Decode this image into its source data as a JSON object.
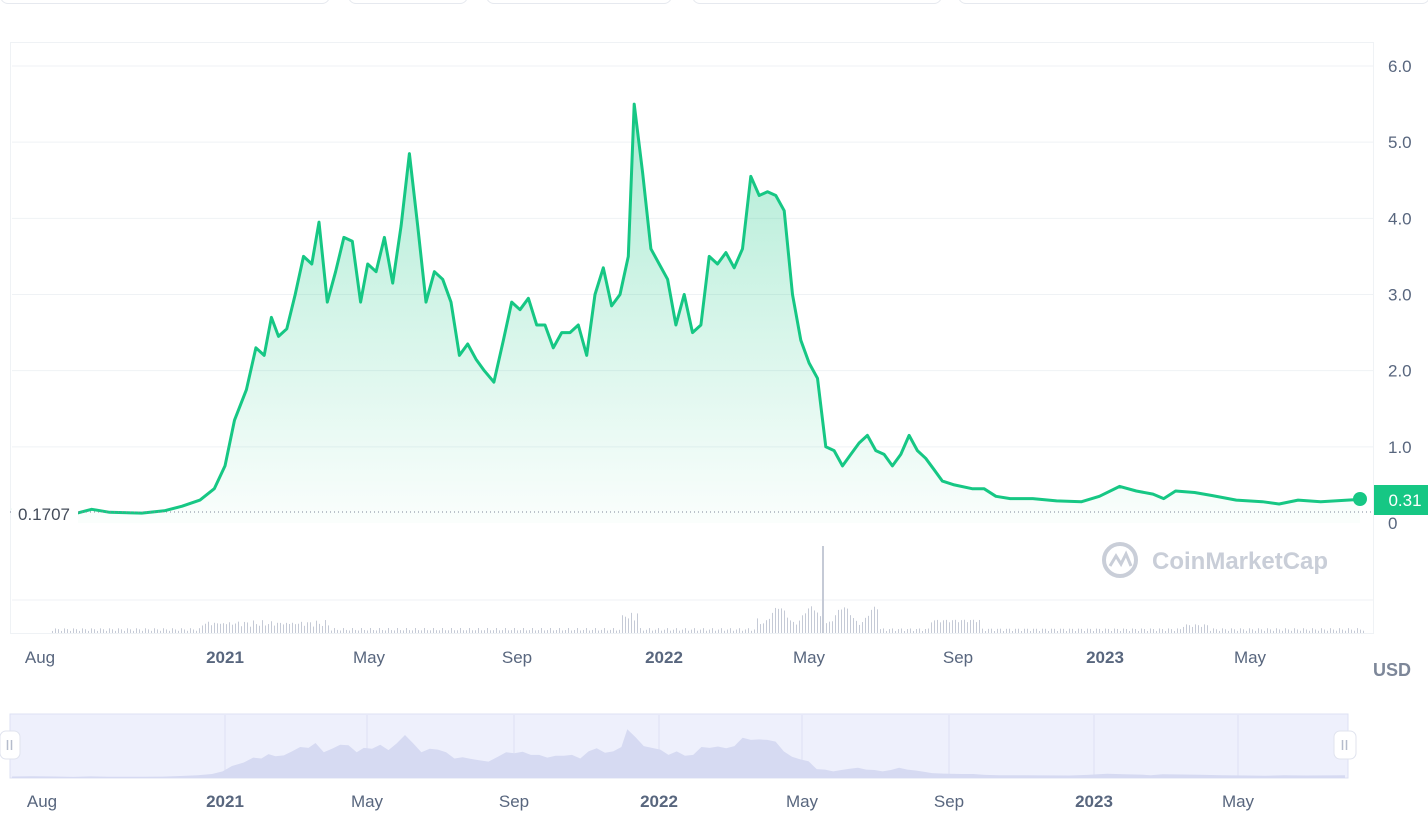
{
  "chart_data": {
    "type": "area",
    "unit": "USD",
    "y_ticks": [
      "6.0",
      "5.0",
      "4.0",
      "3.0",
      "2.0",
      "1.0",
      "0"
    ],
    "ylim": [
      0,
      6.0
    ],
    "x_ticks": [
      {
        "label": "Aug",
        "bold": false
      },
      {
        "label": "2021",
        "bold": true
      },
      {
        "label": "May",
        "bold": false
      },
      {
        "label": "Sep",
        "bold": false
      },
      {
        "label": "2022",
        "bold": true
      },
      {
        "label": "May",
        "bold": false
      },
      {
        "label": "Sep",
        "bold": false
      },
      {
        "label": "2023",
        "bold": true
      },
      {
        "label": "May",
        "bold": false
      }
    ],
    "xlim": [
      "2020-07-15",
      "2023-08-22"
    ],
    "start_price_label": "0.1707",
    "current_price_label": "0.31",
    "grid": true,
    "watermark": "CoinMarketCap",
    "line_color": "#16c784",
    "series": [
      {
        "points": [
          [
            "2020-07-15",
            0.17
          ],
          [
            "2020-08-01",
            0.2
          ],
          [
            "2020-08-20",
            0.17
          ],
          [
            "2020-09-05",
            0.12
          ],
          [
            "2020-09-20",
            0.18
          ],
          [
            "2020-10-05",
            0.14
          ],
          [
            "2020-11-01",
            0.13
          ],
          [
            "2020-11-20",
            0.16
          ],
          [
            "2020-12-05",
            0.22
          ],
          [
            "2020-12-20",
            0.3
          ],
          [
            "2021-01-01",
            0.45
          ],
          [
            "2021-01-10",
            0.75
          ],
          [
            "2021-01-18",
            1.35
          ],
          [
            "2021-01-28",
            1.75
          ],
          [
            "2021-02-05",
            2.3
          ],
          [
            "2021-02-12",
            2.2
          ],
          [
            "2021-02-18",
            2.7
          ],
          [
            "2021-02-24",
            2.45
          ],
          [
            "2021-03-03",
            2.55
          ],
          [
            "2021-03-10",
            3.0
          ],
          [
            "2021-03-17",
            3.5
          ],
          [
            "2021-03-24",
            3.4
          ],
          [
            "2021-03-30",
            3.95
          ],
          [
            "2021-04-06",
            2.9
          ],
          [
            "2021-04-13",
            3.3
          ],
          [
            "2021-04-20",
            3.75
          ],
          [
            "2021-04-27",
            3.7
          ],
          [
            "2021-05-04",
            2.9
          ],
          [
            "2021-05-10",
            3.4
          ],
          [
            "2021-05-17",
            3.3
          ],
          [
            "2021-05-24",
            3.75
          ],
          [
            "2021-05-31",
            3.15
          ],
          [
            "2021-06-07",
            3.9
          ],
          [
            "2021-06-14",
            4.85
          ],
          [
            "2021-06-21",
            3.9
          ],
          [
            "2021-06-28",
            2.9
          ],
          [
            "2021-07-05",
            3.3
          ],
          [
            "2021-07-12",
            3.2
          ],
          [
            "2021-07-19",
            2.9
          ],
          [
            "2021-07-26",
            2.2
          ],
          [
            "2021-08-02",
            2.35
          ],
          [
            "2021-08-09",
            2.15
          ],
          [
            "2021-08-16",
            2.0
          ],
          [
            "2021-08-24",
            1.85
          ],
          [
            "2021-09-01",
            2.4
          ],
          [
            "2021-09-08",
            2.9
          ],
          [
            "2021-09-15",
            2.8
          ],
          [
            "2021-09-22",
            2.95
          ],
          [
            "2021-09-29",
            2.6
          ],
          [
            "2021-10-06",
            2.6
          ],
          [
            "2021-10-13",
            2.3
          ],
          [
            "2021-10-20",
            2.5
          ],
          [
            "2021-10-27",
            2.5
          ],
          [
            "2021-11-03",
            2.6
          ],
          [
            "2021-11-10",
            2.2
          ],
          [
            "2021-11-17",
            3.0
          ],
          [
            "2021-11-24",
            3.35
          ],
          [
            "2021-12-01",
            2.85
          ],
          [
            "2021-12-08",
            3.0
          ],
          [
            "2021-12-15",
            3.5
          ],
          [
            "2021-12-20",
            5.5
          ],
          [
            "2021-12-27",
            4.6
          ],
          [
            "2022-01-03",
            3.6
          ],
          [
            "2022-01-10",
            3.4
          ],
          [
            "2022-01-17",
            3.2
          ],
          [
            "2022-01-24",
            2.6
          ],
          [
            "2022-01-31",
            3.0
          ],
          [
            "2022-02-07",
            2.5
          ],
          [
            "2022-02-14",
            2.6
          ],
          [
            "2022-02-21",
            3.5
          ],
          [
            "2022-02-28",
            3.4
          ],
          [
            "2022-03-07",
            3.55
          ],
          [
            "2022-03-14",
            3.35
          ],
          [
            "2022-03-21",
            3.6
          ],
          [
            "2022-03-28",
            4.55
          ],
          [
            "2022-04-04",
            4.3
          ],
          [
            "2022-04-11",
            4.35
          ],
          [
            "2022-04-18",
            4.3
          ],
          [
            "2022-04-25",
            4.1
          ],
          [
            "2022-05-02",
            3.0
          ],
          [
            "2022-05-09",
            2.4
          ],
          [
            "2022-05-16",
            2.1
          ],
          [
            "2022-05-23",
            1.9
          ],
          [
            "2022-05-30",
            1.0
          ],
          [
            "2022-06-06",
            0.95
          ],
          [
            "2022-06-13",
            0.75
          ],
          [
            "2022-06-20",
            0.9
          ],
          [
            "2022-06-27",
            1.05
          ],
          [
            "2022-07-04",
            1.15
          ],
          [
            "2022-07-11",
            0.95
          ],
          [
            "2022-07-18",
            0.9
          ],
          [
            "2022-07-25",
            0.75
          ],
          [
            "2022-08-01",
            0.9
          ],
          [
            "2022-08-08",
            1.15
          ],
          [
            "2022-08-15",
            0.95
          ],
          [
            "2022-08-22",
            0.85
          ],
          [
            "2022-08-29",
            0.7
          ],
          [
            "2022-09-05",
            0.55
          ],
          [
            "2022-09-15",
            0.5
          ],
          [
            "2022-09-30",
            0.45
          ],
          [
            "2022-10-10",
            0.45
          ],
          [
            "2022-10-20",
            0.35
          ],
          [
            "2022-11-01",
            0.32
          ],
          [
            "2022-11-20",
            0.32
          ],
          [
            "2022-12-10",
            0.29
          ],
          [
            "2022-12-31",
            0.28
          ],
          [
            "2023-01-15",
            0.35
          ],
          [
            "2023-02-01",
            0.48
          ],
          [
            "2023-02-15",
            0.42
          ],
          [
            "2023-03-01",
            0.38
          ],
          [
            "2023-03-10",
            0.32
          ],
          [
            "2023-03-20",
            0.42
          ],
          [
            "2023-04-05",
            0.4
          ],
          [
            "2023-04-20",
            0.36
          ],
          [
            "2023-05-10",
            0.3
          ],
          [
            "2023-06-01",
            0.28
          ],
          [
            "2023-06-15",
            0.25
          ],
          [
            "2023-07-01",
            0.3
          ],
          [
            "2023-07-20",
            0.28
          ],
          [
            "2023-08-22",
            0.31
          ]
        ]
      }
    ],
    "navigator_ticks": [
      {
        "label": "Aug",
        "bold": false
      },
      {
        "label": "2021",
        "bold": true
      },
      {
        "label": "May",
        "bold": false
      },
      {
        "label": "Sep",
        "bold": false
      },
      {
        "label": "2022",
        "bold": true
      },
      {
        "label": "May",
        "bold": false
      },
      {
        "label": "Sep",
        "bold": false
      },
      {
        "label": "2023",
        "bold": true
      },
      {
        "label": "May",
        "bold": false
      }
    ]
  }
}
